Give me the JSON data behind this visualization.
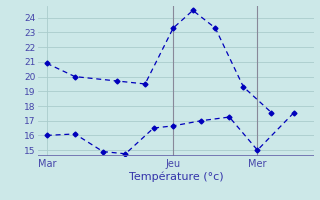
{
  "xlabel": "Température (°c)",
  "background_color": "#cce8e8",
  "grid_color": "#aacccc",
  "line_color": "#0000bb",
  "vline_color": "#888899",
  "bottom_line_color": "#6666aa",
  "tick_color": "#4444aa",
  "xlabel_color": "#3333aa",
  "ylim_min": 14.6,
  "ylim_max": 24.8,
  "xlim_min": -0.3,
  "xlim_max": 9.5,
  "yticks": [
    15,
    16,
    17,
    18,
    19,
    20,
    21,
    22,
    23,
    24
  ],
  "xtick_positions": [
    0,
    4.5,
    7.5
  ],
  "xtick_labels": [
    "Mar",
    "Jeu",
    "Mer"
  ],
  "vline_positions": [
    4.5,
    7.5
  ],
  "line1_x": [
    0.0,
    1.0,
    2.5,
    3.5,
    4.5,
    5.2,
    6.0,
    7.0,
    8.0
  ],
  "line1_y": [
    20.9,
    20.0,
    19.7,
    19.5,
    23.3,
    24.5,
    23.3,
    19.3,
    17.55
  ],
  "line2_x": [
    0.0,
    1.0,
    2.0,
    2.8,
    3.8,
    4.5,
    5.5,
    6.5,
    7.5,
    8.8
  ],
  "line2_y": [
    16.0,
    16.1,
    14.9,
    14.75,
    16.5,
    16.65,
    17.0,
    17.25,
    15.0,
    17.55
  ]
}
